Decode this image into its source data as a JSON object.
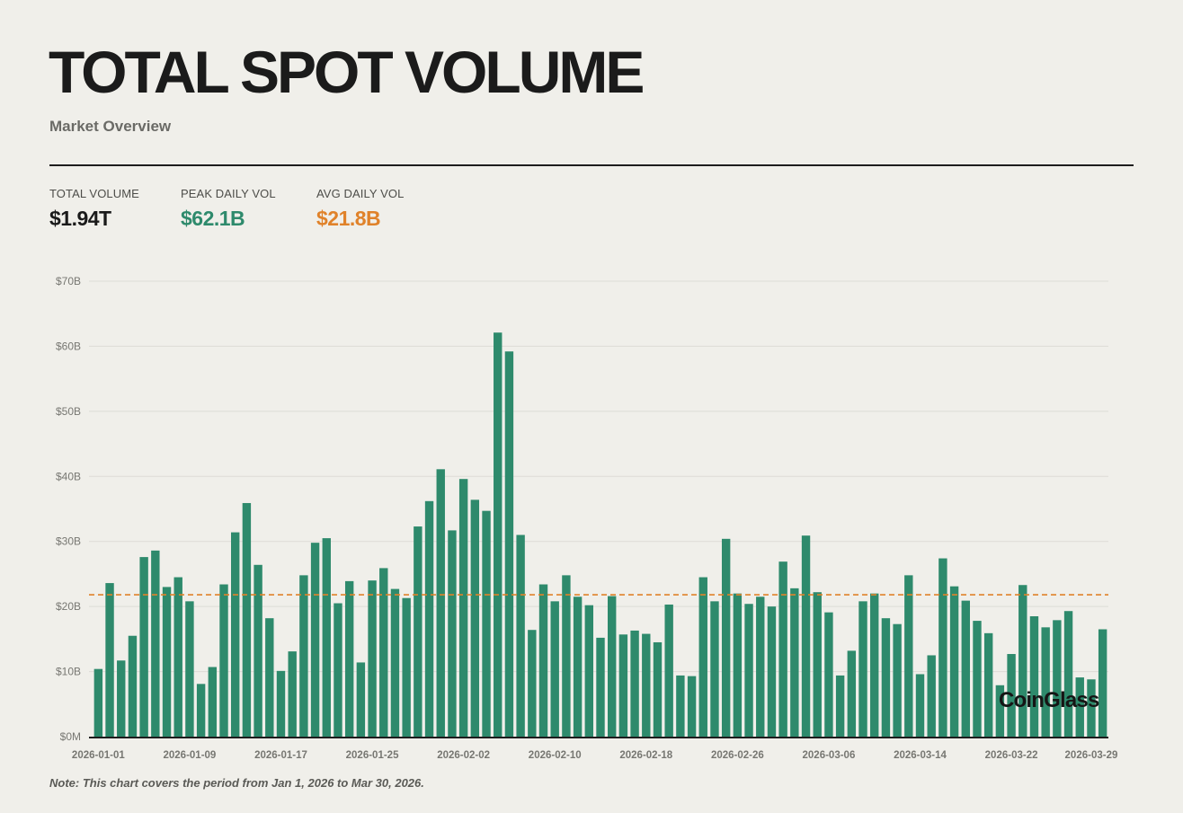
{
  "header": {
    "title": "TOTAL SPOT VOLUME",
    "subtitle": "Market Overview"
  },
  "stats": [
    {
      "label": "TOTAL VOLUME",
      "value": "$1.94T",
      "color": "#1a1a1a"
    },
    {
      "label": "PEAK DAILY VOL",
      "value": "$62.1B",
      "color": "#2e8a6c"
    },
    {
      "label": "AVG DAILY VOL",
      "value": "$21.8B",
      "color": "#e0822a"
    }
  ],
  "note": "Note: This chart covers the period from Jan 1, 2026 to Mar 30, 2026.",
  "watermark": "CoinGlass",
  "colors": {
    "bar": "#2e8a6c",
    "avg_line": "#e0822a",
    "grid": "#dddcd6",
    "axis": "#1d1d1d",
    "tick_text": "#777772"
  },
  "chart_data": {
    "type": "bar",
    "y_unit": "billion USD",
    "ylim": [
      0,
      70
    ],
    "y_ticks": [
      {
        "value": 0,
        "label": "$0M"
      },
      {
        "value": 10,
        "label": "$10B"
      },
      {
        "value": 20,
        "label": "$20B"
      },
      {
        "value": 30,
        "label": "$30B"
      },
      {
        "value": 40,
        "label": "$40B"
      },
      {
        "value": 50,
        "label": "$50B"
      },
      {
        "value": 60,
        "label": "$60B"
      },
      {
        "value": 70,
        "label": "$70B"
      }
    ],
    "x_ticks": [
      "2026-01-01",
      "2026-01-09",
      "2026-01-17",
      "2026-01-25",
      "2026-02-02",
      "2026-02-10",
      "2026-02-18",
      "2026-02-26",
      "2026-03-06",
      "2026-03-14",
      "2026-03-22",
      "2026-03-29"
    ],
    "grid": true,
    "average_line": 21.8,
    "categories": [
      "2026-01-01",
      "2026-01-02",
      "2026-01-03",
      "2026-01-04",
      "2026-01-05",
      "2026-01-06",
      "2026-01-07",
      "2026-01-08",
      "2026-01-09",
      "2026-01-10",
      "2026-01-11",
      "2026-01-12",
      "2026-01-13",
      "2026-01-14",
      "2026-01-15",
      "2026-01-16",
      "2026-01-17",
      "2026-01-18",
      "2026-01-19",
      "2026-01-20",
      "2026-01-21",
      "2026-01-22",
      "2026-01-23",
      "2026-01-24",
      "2026-01-25",
      "2026-01-26",
      "2026-01-27",
      "2026-01-28",
      "2026-01-29",
      "2026-01-30",
      "2026-01-31",
      "2026-02-01",
      "2026-02-02",
      "2026-02-03",
      "2026-02-04",
      "2026-02-05",
      "2026-02-06",
      "2026-02-07",
      "2026-02-08",
      "2026-02-09",
      "2026-02-10",
      "2026-02-11",
      "2026-02-12",
      "2026-02-13",
      "2026-02-14",
      "2026-02-15",
      "2026-02-16",
      "2026-02-17",
      "2026-02-18",
      "2026-02-19",
      "2026-02-20",
      "2026-02-21",
      "2026-02-22",
      "2026-02-23",
      "2026-02-24",
      "2026-02-25",
      "2026-02-26",
      "2026-02-27",
      "2026-02-28",
      "2026-03-01",
      "2026-03-02",
      "2026-03-03",
      "2026-03-04",
      "2026-03-05",
      "2026-03-06",
      "2026-03-07",
      "2026-03-08",
      "2026-03-09",
      "2026-03-10",
      "2026-03-11",
      "2026-03-12",
      "2026-03-13",
      "2026-03-14",
      "2026-03-15",
      "2026-03-16",
      "2026-03-17",
      "2026-03-18",
      "2026-03-19",
      "2026-03-20",
      "2026-03-21",
      "2026-03-22",
      "2026-03-23",
      "2026-03-24",
      "2026-03-25",
      "2026-03-26",
      "2026-03-27",
      "2026-03-28",
      "2026-03-29",
      "2026-03-30"
    ],
    "values": [
      10.4,
      23.6,
      11.7,
      15.5,
      27.6,
      28.6,
      23.0,
      24.5,
      20.8,
      8.1,
      10.7,
      23.4,
      31.4,
      35.9,
      26.4,
      18.2,
      10.1,
      13.1,
      24.8,
      29.8,
      30.5,
      20.5,
      23.9,
      11.4,
      24.0,
      25.9,
      22.7,
      21.3,
      32.3,
      36.2,
      41.1,
      31.7,
      39.6,
      36.4,
      34.7,
      62.1,
      59.2,
      31.0,
      16.4,
      23.4,
      20.8,
      24.8,
      21.5,
      20.2,
      15.2,
      21.6,
      15.7,
      16.3,
      15.8,
      14.5,
      20.3,
      9.4,
      9.3,
      24.5,
      20.8,
      30.4,
      22.0,
      20.4,
      21.5,
      20.0,
      26.9,
      22.8,
      30.9,
      22.2,
      19.1,
      9.4,
      13.2,
      20.8,
      22.0,
      18.2,
      17.3,
      24.8,
      9.6,
      12.5,
      27.4,
      23.1,
      20.9,
      17.8,
      15.9,
      7.9,
      12.7,
      23.3,
      18.5,
      16.8,
      17.9,
      19.3,
      9.1,
      8.8,
      16.5
    ]
  }
}
